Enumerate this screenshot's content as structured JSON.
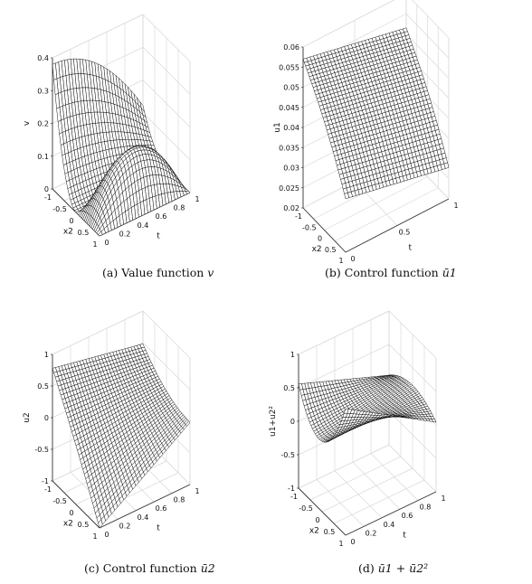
{
  "chart_data": [
    {
      "type": "surface",
      "caption_prefix": "(a)",
      "caption": "Value function",
      "caption_symbol": "v",
      "z_label": "v",
      "x_label": "x2",
      "t_label": "t",
      "x_range": [
        -1,
        1
      ],
      "t_range": [
        0,
        1
      ],
      "z_range": [
        0,
        0.4
      ],
      "z_ticks": [
        "0",
        "0.1",
        "0.2",
        "0.3",
        "0.4"
      ],
      "x_ticks": [
        "-1",
        "-0.5",
        "0",
        "0.5",
        "1"
      ],
      "t_ticks": [
        "0",
        "0.2",
        "0.4",
        "0.6",
        "0.8",
        "1"
      ],
      "samples": [
        {
          "t": 0,
          "x2": -1,
          "value": 0.38
        },
        {
          "t": 0,
          "x2": 0,
          "value": 0.0
        },
        {
          "t": 0,
          "x2": 1,
          "value": 0.0
        },
        {
          "t": 0.5,
          "x2": -1,
          "value": 0.27
        },
        {
          "t": 0.5,
          "x2": 1,
          "value": 0.33
        },
        {
          "t": 1,
          "x2": -1,
          "value": 0.12
        },
        {
          "t": 1,
          "x2": 1,
          "value": 0.0
        }
      ]
    },
    {
      "type": "surface",
      "caption_prefix": "(b)",
      "caption": "Control function",
      "caption_symbol": "ū1",
      "z_label": "u1",
      "x_label": "x2",
      "t_label": "t",
      "x_range": [
        -1,
        1
      ],
      "t_range": [
        0,
        1
      ],
      "z_range": [
        0.02,
        0.06
      ],
      "z_ticks": [
        "0.02",
        "0.025",
        "0.03",
        "0.035",
        "0.04",
        "0.045",
        "0.05",
        "0.055",
        "0.06"
      ],
      "x_ticks": [
        "-1",
        "-0.5",
        "0",
        "0.5",
        "1"
      ],
      "t_ticks": [
        "0",
        "0.5",
        "1"
      ],
      "samples": [
        {
          "t": 0,
          "x2": -1,
          "value": 0.057
        },
        {
          "t": 0,
          "x2": 1,
          "value": 0.032
        },
        {
          "t": 1,
          "x2": -1,
          "value": 0.052
        },
        {
          "t": 1,
          "x2": 1,
          "value": 0.024
        }
      ]
    },
    {
      "type": "surface",
      "caption_prefix": "(c)",
      "caption": "Control function",
      "caption_symbol": "ū2",
      "z_label": "u2",
      "x_label": "x2",
      "t_label": "t",
      "x_range": [
        -1,
        1
      ],
      "t_range": [
        0,
        1
      ],
      "z_range": [
        -1,
        1
      ],
      "z_ticks": [
        "-1",
        "-0.5",
        "0",
        "0.5",
        "1"
      ],
      "x_ticks": [
        "-1",
        "-0.5",
        "0",
        "0.5",
        "1"
      ],
      "t_ticks": [
        "0",
        "0.2",
        "0.4",
        "0.6",
        "0.8",
        "1"
      ],
      "samples": [
        {
          "t": 0,
          "x2": -1,
          "value": 0.78
        },
        {
          "t": 0,
          "x2": 1,
          "value": -1.0
        },
        {
          "t": 1,
          "x2": -1,
          "value": 0.5
        },
        {
          "t": 1,
          "x2": 1,
          "value": -0.02
        }
      ]
    },
    {
      "type": "surface",
      "caption_prefix": "(d)",
      "caption": "",
      "caption_symbol": "ū1 + ū2²",
      "z_label": "u1+u2²",
      "x_label": "x2",
      "t_label": "t",
      "x_range": [
        -1,
        1
      ],
      "t_range": [
        0,
        1
      ],
      "z_range": [
        -1,
        1
      ],
      "z_ticks": [
        "-1",
        "-0.5",
        "0",
        "0.5",
        "1"
      ],
      "x_ticks": [
        "-1",
        "-0.5",
        "0",
        "0.5",
        "1"
      ],
      "t_ticks": [
        "0",
        "0.2",
        "0.4",
        "0.6",
        "0.8",
        "1"
      ],
      "samples": [
        {
          "t": 0,
          "x2": -1,
          "value": 0.66
        },
        {
          "t": 0,
          "x2": 0,
          "value": 0.0
        },
        {
          "t": 0,
          "x2": 1,
          "value": 0.05
        },
        {
          "t": 1,
          "x2": 0,
          "value": 0.2
        },
        {
          "t": 1,
          "x2": 1,
          "value": 0.03
        }
      ]
    }
  ],
  "colors": {
    "mesh_line": "#000000",
    "mesh_fill": "#ffffff",
    "grid": "#d9d9d9",
    "axis": "#333333"
  }
}
